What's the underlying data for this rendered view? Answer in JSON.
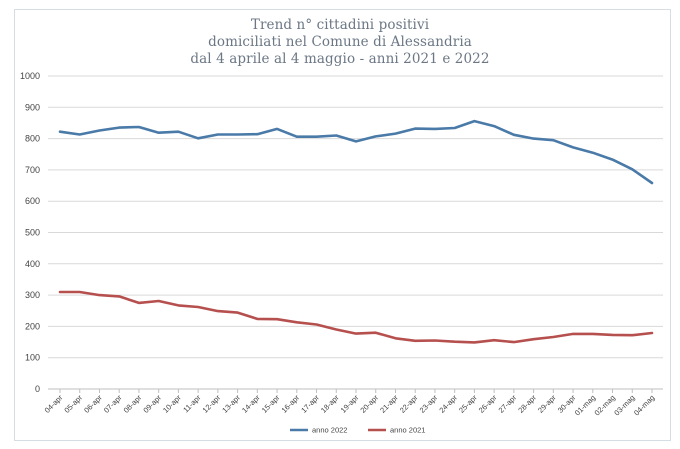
{
  "chart_data": {
    "type": "line",
    "title_lines": [
      "Trend n° cittadini positivi",
      "domiciliati nel Comune di Alessandria",
      "dal 4 aprile al 4 maggio - anni 2021 e 2022"
    ],
    "ylim": [
      0,
      1000
    ],
    "yticks": [
      "0",
      "100",
      "200",
      "300",
      "400",
      "500",
      "600",
      "700",
      "800",
      "900",
      "1000"
    ],
    "grid": true,
    "legend_position": "bottom",
    "categories": [
      "04-apr",
      "05-apr",
      "06-apr",
      "07-apr",
      "08-apr",
      "09-apr",
      "10-apr",
      "11-apr",
      "12-apr",
      "13-apr",
      "14-apr",
      "15-apr",
      "16-apr",
      "17-apr",
      "18-apr",
      "19-apr",
      "20-apr",
      "21-apr",
      "22-apr",
      "23-apr",
      "24-apr",
      "25-apr",
      "26-apr",
      "27-apr",
      "28-apr",
      "29-apr",
      "30-apr",
      "01-mag",
      "02-mag",
      "03-mag",
      "04-mag"
    ],
    "series": [
      {
        "name": "anno 2022",
        "color": "#4a7aa8",
        "values": [
          822,
          813,
          826,
          835,
          837,
          819,
          822,
          801,
          813,
          813,
          814,
          831,
          806,
          806,
          810,
          791,
          807,
          816,
          832,
          831,
          834,
          856,
          840,
          812,
          800,
          795,
          772,
          755,
          733,
          702,
          658
        ]
      },
      {
        "name": "anno 2021",
        "color": "#b6504e",
        "values": [
          310,
          310,
          300,
          296,
          275,
          281,
          267,
          262,
          249,
          244,
          224,
          223,
          213,
          206,
          190,
          177,
          180,
          162,
          154,
          155,
          151,
          149,
          156,
          150,
          159,
          166,
          176,
          176,
          173,
          172,
          179
        ]
      }
    ]
  }
}
